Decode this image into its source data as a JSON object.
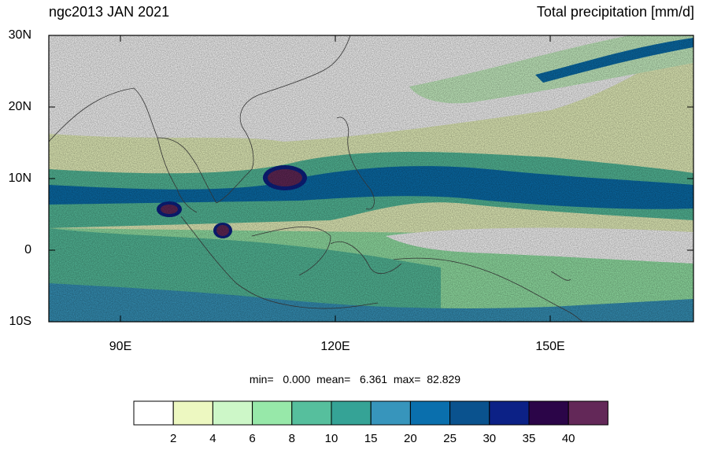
{
  "title_left": "ngc2013 JAN 2021",
  "title_right": "Total precipitation [mm/d]",
  "lat_labels": [
    "30N",
    "20N",
    "10N",
    "0",
    "10S"
  ],
  "lon_labels": [
    "90E",
    "120E",
    "150E"
  ],
  "stats": {
    "min_label": "min=",
    "min_value": "0.000",
    "mean_label": "mean=",
    "mean_value": "6.361",
    "max_label": "max=",
    "max_value": "82.829"
  },
  "colorbar": {
    "colors": [
      "#ffffff",
      "#edf8c1",
      "#cdf7c8",
      "#97e8a9",
      "#56bf9d",
      "#35a396",
      "#3795bc",
      "#0a6fad",
      "#0a528e",
      "#0c2186",
      "#2b0548",
      "#632858"
    ],
    "labels": [
      "2",
      "4",
      "6",
      "8",
      "10",
      "15",
      "20",
      "25",
      "30",
      "35",
      "40"
    ]
  }
}
